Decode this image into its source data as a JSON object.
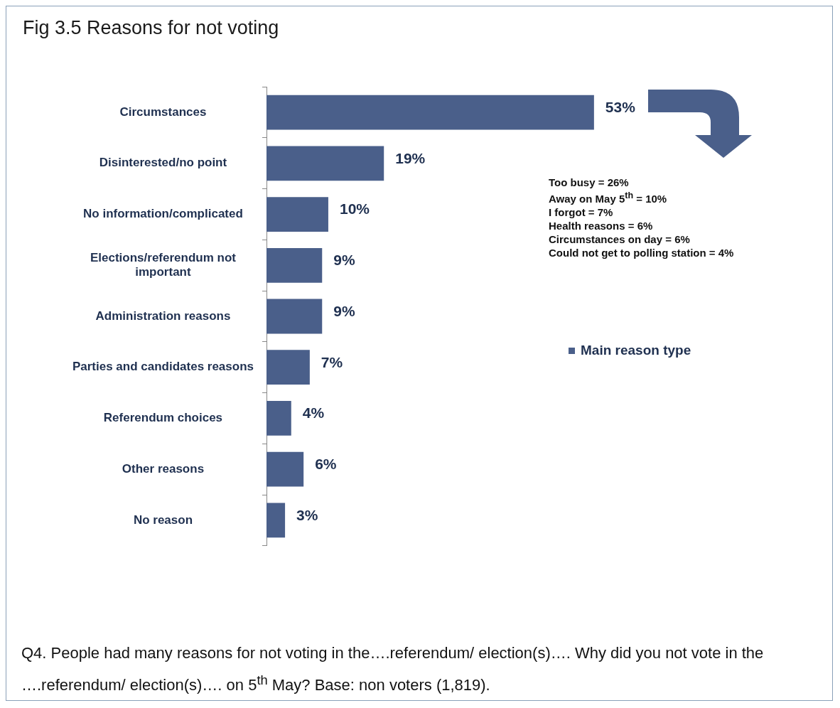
{
  "chart_data": {
    "type": "bar",
    "orientation": "horizontal",
    "title": "Fig 3.5 Reasons for not voting",
    "categories": [
      "Circumstances",
      "Disinterested/no point",
      "No information/complicated",
      "Elections/referendum not important",
      "Administration reasons",
      "Parties and candidates reasons",
      "Referendum choices",
      "Other reasons",
      "No reason"
    ],
    "series": [
      {
        "name": "Main reason type",
        "color": "#4a5f8a",
        "values": [
          53,
          19,
          10,
          9,
          9,
          7,
          4,
          6,
          3
        ],
        "value_labels": [
          "53%",
          "19%",
          "10%",
          "9%",
          "9%",
          "7%",
          "4%",
          "6%",
          "3%"
        ]
      }
    ],
    "xlim": [
      0,
      92
    ],
    "tick_labels": "y",
    "grid": false,
    "legend": "right",
    "annotations": [
      "Too busy = 26%",
      "Away on May 5$^{th}$ = 10%",
      "I forgot = 7%",
      "Health reasons = 6%",
      "Circumstances on day = 6%",
      "Could not get to polling station = 4%",
      "Q4. People had many reasons for not voting in the….referendum/ election(s)….  Why did you not vote in the ….referendum/ election(s)…. on 5$^{th}$ May? Base: non voters (1,819)."
    ]
  }
}
